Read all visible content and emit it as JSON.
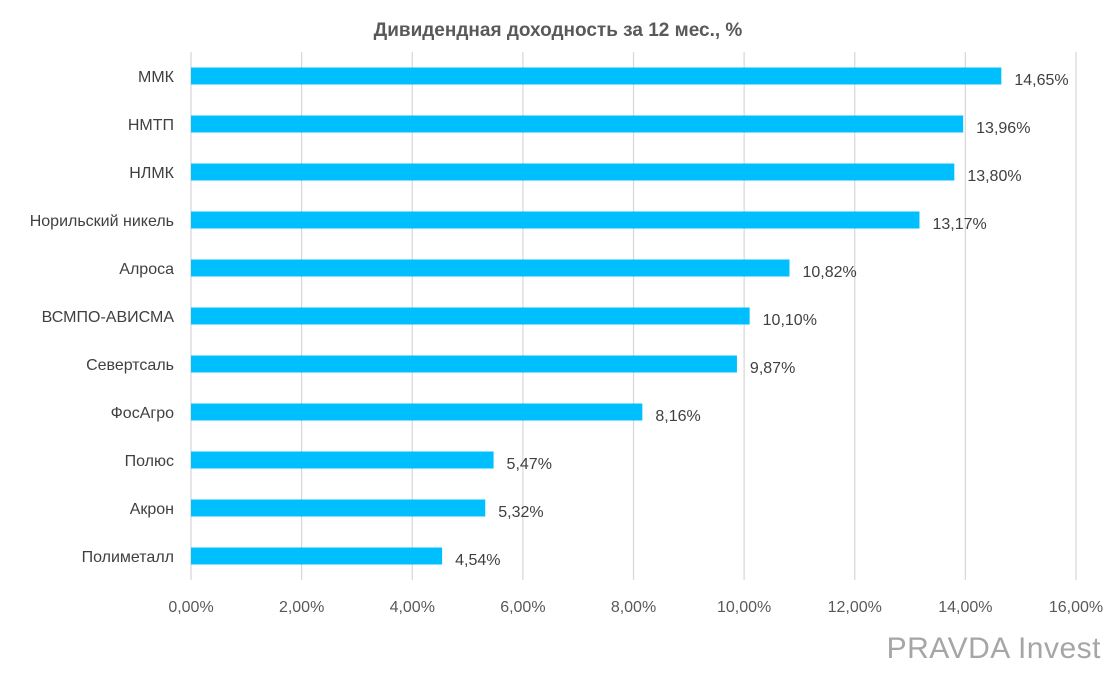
{
  "chart_data": {
    "type": "bar",
    "orientation": "horizontal",
    "title": "Дивидендная доходность за 12 мес., %",
    "categories": [
      "ММК",
      "НМТП",
      "НЛМК",
      "Норильский никель",
      "Алроса",
      "ВСМПО-АВИСМА",
      "Севертсаль",
      "ФосАгро",
      "Полюс",
      "Акрон",
      "Полиметалл"
    ],
    "values": [
      14.65,
      13.96,
      13.8,
      13.17,
      10.82,
      10.1,
      9.87,
      8.16,
      5.47,
      5.32,
      4.54
    ],
    "data_labels": [
      "14,65%",
      "13,96%",
      "13,80%",
      "13,17%",
      "10,82%",
      "10,10%",
      "9,87%",
      "8,16%",
      "5,47%",
      "5,32%",
      "4,54%"
    ],
    "xlim": [
      0,
      16
    ],
    "x_ticks": [
      0,
      2,
      4,
      6,
      8,
      10,
      12,
      14,
      16
    ],
    "x_tick_labels": [
      "0,00%",
      "2,00%",
      "4,00%",
      "6,00%",
      "8,00%",
      "10,00%",
      "12,00%",
      "14,00%",
      "16,00%"
    ],
    "grid": true,
    "bar_color": "#00bfff",
    "grid_color": "#d9d9d9"
  },
  "watermark": "PRAVDA Invest"
}
